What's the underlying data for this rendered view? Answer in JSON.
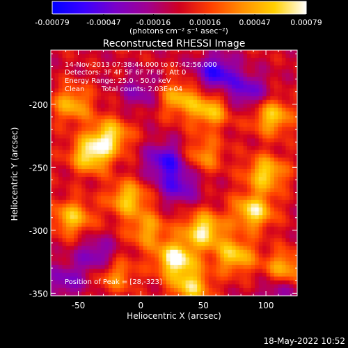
{
  "chart_data": {
    "type": "heatmap",
    "title": "Reconstructed RHESSI Image",
    "xlabel": "Heliocentric X (arcsec)",
    "ylabel": "Heliocentric Y (arcsec)",
    "xlim": [
      -72,
      125
    ],
    "ylim": [
      -352,
      -157
    ],
    "xticks": [
      -50,
      0,
      50,
      100
    ],
    "yticks": [
      -200,
      -250,
      -300,
      -350
    ],
    "xtick_labels": [
      "-50",
      "0",
      "50",
      "100"
    ],
    "ytick_labels": [
      "-200",
      "-250",
      "-300",
      "-350"
    ],
    "colorbar": {
      "range": [
        -0.00079,
        0.00079
      ],
      "tick_values": [
        -0.00079,
        -0.00047,
        -0.00016,
        0.00016,
        0.00047,
        0.00079
      ],
      "tick_labels": [
        "-0.00079",
        "-0.00047",
        "-0.00016",
        "0.00016",
        "0.00047",
        "0.00079"
      ],
      "unit_label": "(photons cm⁻² s⁻¹ asec⁻²)",
      "colormap": [
        "#0000ff",
        "#3a00ff",
        "#7a00c8",
        "#a00090",
        "#d00020",
        "#ff4000",
        "#ff9000",
        "#ffd000",
        "#ffffff"
      ]
    },
    "annotations": {
      "time_range": "14-Nov-2013 07:38:44.000 to 07:42:56.000",
      "detectors": "Detectors: 3F 4F 5F 6F 7F 8F, Att 0",
      "energy_range": "Energy Range: 25.0 - 50.0 keV",
      "clean": "Clean",
      "total_counts": "Total counts: 2.03E+04",
      "peak": "Position of Peak = [28,-323]"
    },
    "peak_position": [
      28,
      -323
    ],
    "sources": [
      {
        "x": -40,
        "y": -240,
        "amp": 0.0007
      },
      {
        "x": -25,
        "y": -225,
        "amp": 0.00062
      },
      {
        "x": -55,
        "y": -200,
        "amp": 0.0005
      },
      {
        "x": -10,
        "y": -275,
        "amp": 0.00058
      },
      {
        "x": -55,
        "y": -290,
        "amp": 0.00055
      },
      {
        "x": 5,
        "y": -300,
        "amp": 0.00045
      },
      {
        "x": 30,
        "y": -195,
        "amp": 0.0005
      },
      {
        "x": 55,
        "y": -205,
        "amp": 0.00055
      },
      {
        "x": 50,
        "y": -240,
        "amp": 0.0004
      },
      {
        "x": 28,
        "y": -323,
        "amp": 0.00079
      },
      {
        "x": 50,
        "y": -300,
        "amp": 0.00072
      },
      {
        "x": 75,
        "y": -320,
        "amp": 0.0006
      },
      {
        "x": 90,
        "y": -285,
        "amp": 0.00068
      },
      {
        "x": 100,
        "y": -255,
        "amp": 0.00062
      },
      {
        "x": 105,
        "y": -210,
        "amp": 0.00058
      },
      {
        "x": 115,
        "y": -330,
        "amp": 0.0005
      },
      {
        "x": 40,
        "y": -345,
        "amp": 0.0006
      },
      {
        "x": -20,
        "y": -335,
        "amp": 0.0004
      }
    ],
    "sinks": [
      {
        "x": 20,
        "y": -245,
        "amp": -0.00055
      },
      {
        "x": 60,
        "y": -175,
        "amp": -0.0006
      },
      {
        "x": 85,
        "y": -190,
        "amp": -0.00045
      },
      {
        "x": 30,
        "y": -265,
        "amp": -0.00045
      },
      {
        "x": -35,
        "y": -320,
        "amp": -0.0004
      },
      {
        "x": -60,
        "y": -340,
        "amp": -0.00035
      },
      {
        "x": 110,
        "y": -350,
        "amp": -0.0003
      },
      {
        "x": 0,
        "y": -190,
        "amp": -0.0003
      }
    ]
  },
  "footer": {
    "date": "18-May-2022 10:52"
  }
}
